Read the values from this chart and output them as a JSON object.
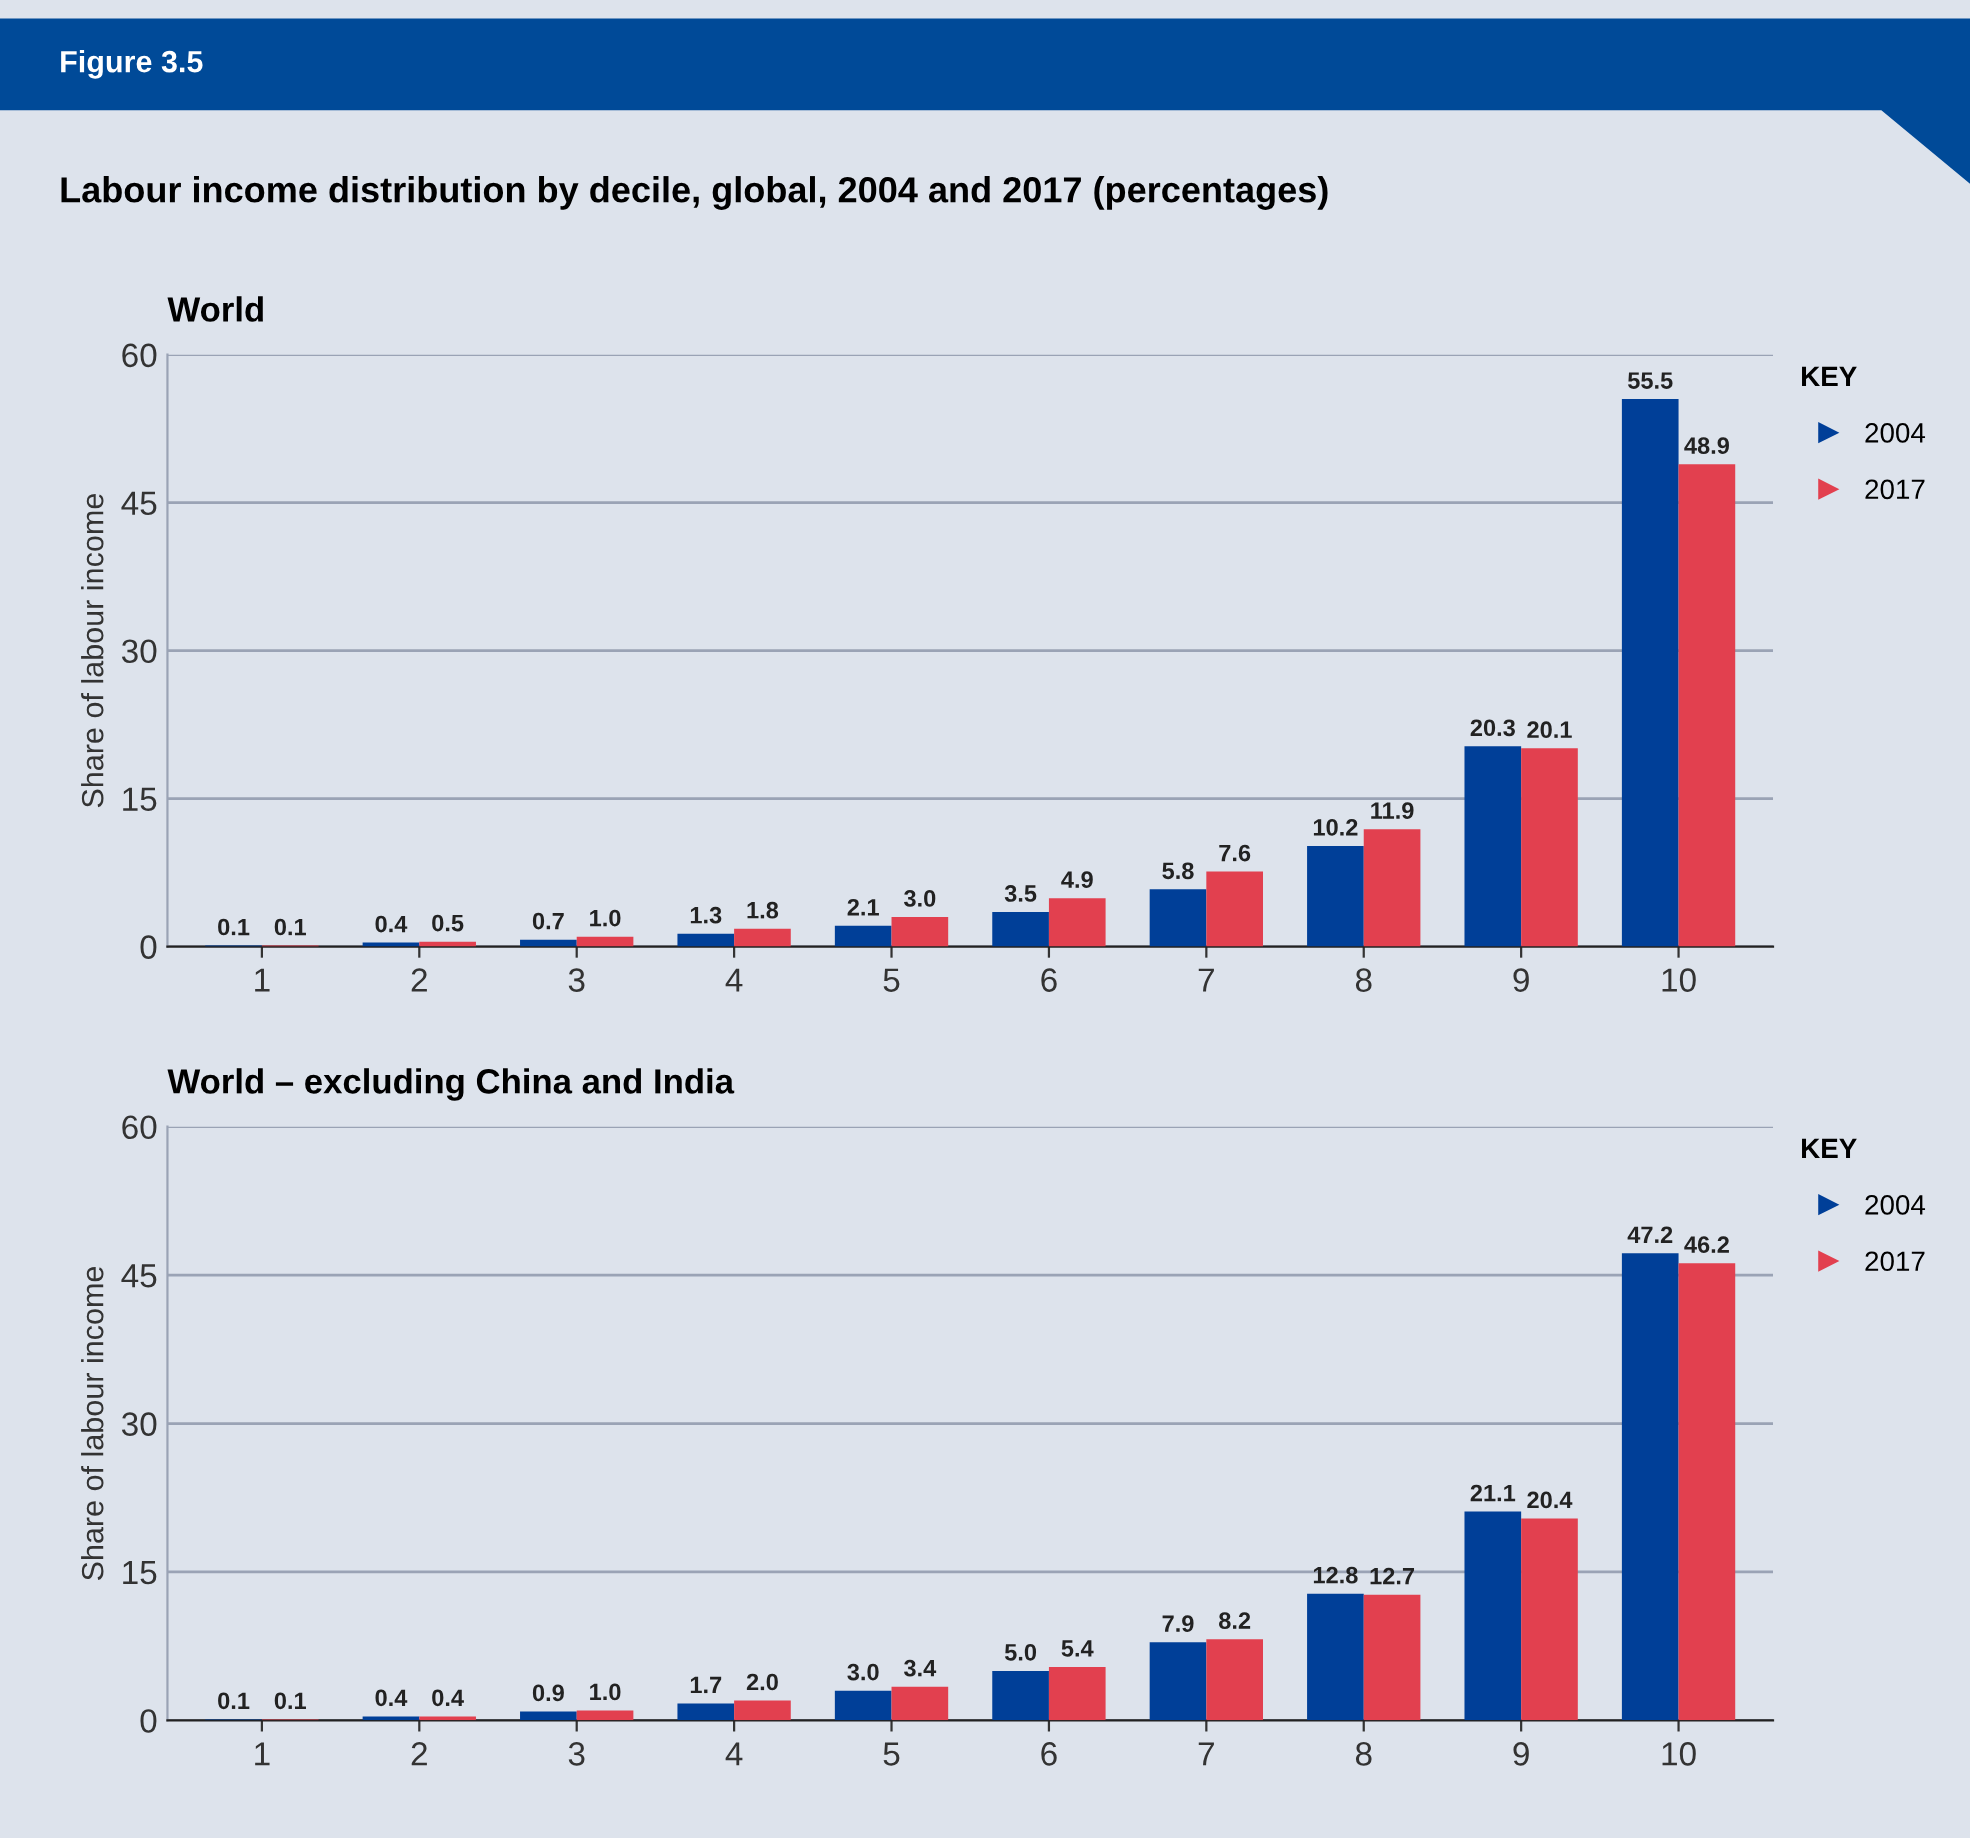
{
  "chart_data": [
    {
      "type": "bar",
      "title": "World",
      "ylabel": "Share of labour income",
      "legend_title": "KEY",
      "legend": "right",
      "annotations": [
        "Figure 3.5",
        "Labour income distribution by decile, global, 2004 and 2017 (percentages)"
      ],
      "categories": [
        "1",
        "2",
        "3",
        "4",
        "5",
        "6",
        "7",
        "8",
        "9",
        "10"
      ],
      "series": [
        {
          "name": "2004",
          "color": "#003f98",
          "values": [
            0.1,
            0.4,
            0.7,
            1.3,
            2.1,
            3.5,
            5.8,
            10.2,
            20.3,
            55.5
          ],
          "value_labels": [
            "0.1",
            "0.4",
            "0.7",
            "1.3",
            "2.1",
            "3.5",
            "5.8",
            "10.2",
            "20.3",
            "55.5"
          ]
        },
        {
          "name": "2017",
          "color": "#e2404f",
          "values": [
            0.1,
            0.5,
            1.0,
            1.8,
            3.0,
            4.9,
            7.6,
            11.9,
            20.1,
            48.9
          ],
          "value_labels": [
            "0.1",
            "0.5",
            "1.0",
            "1.8",
            "3.0",
            "4.9",
            "7.6",
            "11.9",
            "20.1",
            "48.9"
          ]
        }
      ],
      "ylim": [
        0,
        60
      ],
      "yticks": [
        0,
        15,
        30,
        45,
        60
      ],
      "grid": "y"
    },
    {
      "type": "bar",
      "title": "World – excluding China and India",
      "ylabel": "Share of labour income",
      "legend_title": "KEY",
      "legend": "right",
      "categories": [
        "1",
        "2",
        "3",
        "4",
        "5",
        "6",
        "7",
        "8",
        "9",
        "10"
      ],
      "series": [
        {
          "name": "2004",
          "color": "#003f98",
          "values": [
            0.1,
            0.4,
            0.9,
            1.7,
            3.0,
            5.0,
            7.9,
            12.8,
            21.1,
            47.2
          ],
          "value_labels": [
            "0.1",
            "0.4",
            "0.9",
            "1.7",
            "3.0",
            "5.0",
            "7.9",
            "12.8",
            "21.1",
            "47.2"
          ]
        },
        {
          "name": "2017",
          "color": "#e2404f",
          "values": [
            0.1,
            0.4,
            1.0,
            2.0,
            3.4,
            5.4,
            8.2,
            12.7,
            20.4,
            46.2
          ],
          "value_labels": [
            "0.1",
            "0.4",
            "1.0",
            "2.0",
            "3.4",
            "5.4",
            "8.2",
            "12.7",
            "20.4",
            "46.2"
          ]
        }
      ],
      "ylim": [
        0,
        60
      ],
      "yticks": [
        0,
        15,
        30,
        45,
        60
      ],
      "grid": "y"
    }
  ]
}
